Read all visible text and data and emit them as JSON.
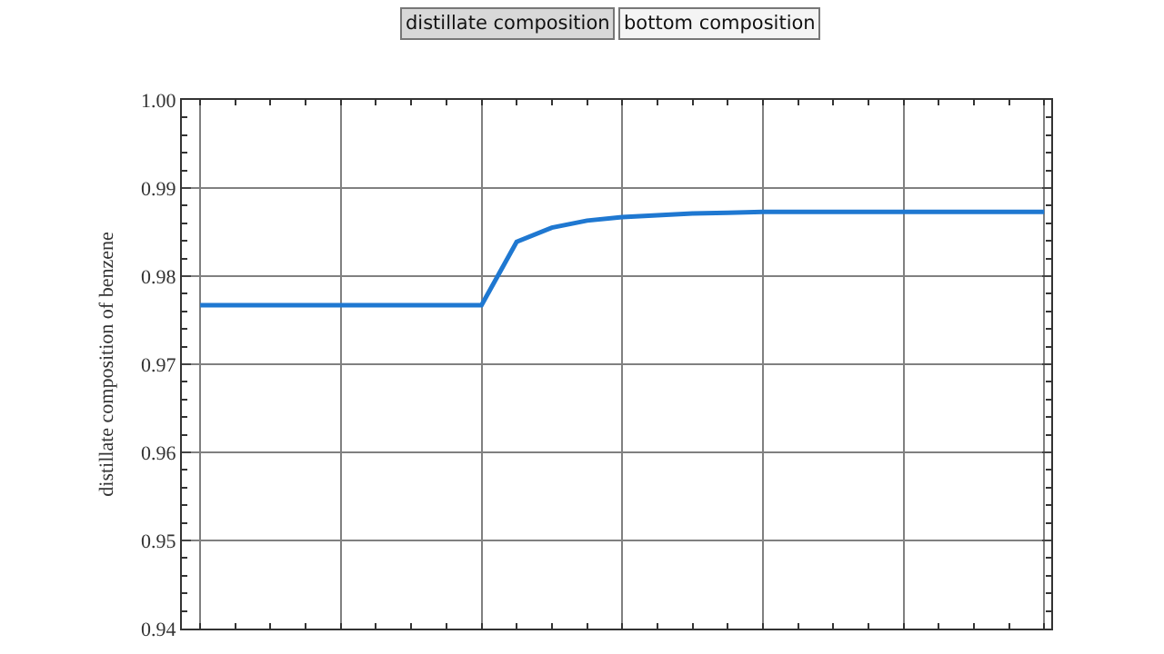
{
  "chart_data": {
    "type": "line",
    "ylabel": "distillate composition of benzene",
    "annotations": [
      "distillate composition",
      "bottom composition"
    ],
    "categories": [
      null,
      null,
      null,
      null,
      null,
      null,
      null,
      null,
      null,
      null,
      null,
      null,
      null,
      null,
      null,
      null,
      null,
      null,
      null,
      null,
      null,
      null,
      null,
      null,
      null
    ],
    "series": [
      {
        "color": "#1f78d1",
        "values": [
          0.9767,
          0.9767,
          0.9767,
          0.9767,
          0.9767,
          0.9767,
          0.9767,
          0.9767,
          0.9767,
          0.9839,
          0.9855,
          0.9863,
          0.9867,
          0.9869,
          0.9871,
          0.9872,
          0.9873,
          0.9873,
          0.9873,
          0.9873,
          0.9873,
          0.9873,
          0.9873,
          0.9873,
          0.9873
        ]
      }
    ],
    "ylim": [
      0.94,
      1.0
    ],
    "yticks": [
      0.94,
      0.95,
      0.96,
      0.97,
      0.98,
      0.99,
      {
        "value": 1.0,
        "label": "1.00"
      }
    ],
    "tick_labels": "y",
    "grid": true,
    "marker": "none",
    "line_style": "solid"
  }
}
